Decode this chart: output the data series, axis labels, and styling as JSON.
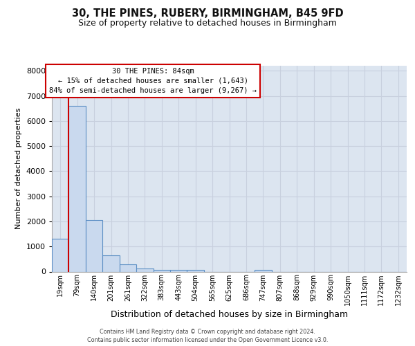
{
  "title_line1": "30, THE PINES, RUBERY, BIRMINGHAM, B45 9FD",
  "title_line2": "Size of property relative to detached houses in Birmingham",
  "xlabel": "Distribution of detached houses by size in Birmingham",
  "ylabel": "Number of detached properties",
  "footnote1": "Contains HM Land Registry data © Crown copyright and database right 2024.",
  "footnote2": "Contains public sector information licensed under the Open Government Licence v3.0.",
  "bin_labels": [
    "19sqm",
    "79sqm",
    "140sqm",
    "201sqm",
    "261sqm",
    "322sqm",
    "383sqm",
    "443sqm",
    "504sqm",
    "565sqm",
    "625sqm",
    "686sqm",
    "747sqm",
    "807sqm",
    "868sqm",
    "929sqm",
    "990sqm",
    "1050sqm",
    "1111sqm",
    "1172sqm",
    "1232sqm"
  ],
  "bar_values": [
    1300,
    6600,
    2050,
    650,
    300,
    130,
    80,
    80,
    80,
    0,
    0,
    0,
    80,
    0,
    0,
    0,
    0,
    0,
    0,
    0,
    0
  ],
  "bar_color": "#c9d9ee",
  "bar_edge_color": "#5b8ec4",
  "vline_x": 0.5,
  "vline_color": "#cc0000",
  "annotation_line1": "30 THE PINES: 84sqm",
  "annotation_line2": "← 15% of detached houses are smaller (1,643)",
  "annotation_line3": "84% of semi-detached houses are larger (9,267) →",
  "ylim": [
    0,
    8200
  ],
  "yticks": [
    0,
    1000,
    2000,
    3000,
    4000,
    5000,
    6000,
    7000,
    8000
  ],
  "grid_color": "#c8d0de",
  "background_color": "#dce5f0",
  "title1_fontsize": 10.5,
  "title2_fontsize": 9,
  "ylabel_fontsize": 8,
  "xlabel_fontsize": 9,
  "tick_fontsize": 7,
  "annot_fontsize": 7.5,
  "footnote_fontsize": 5.8
}
